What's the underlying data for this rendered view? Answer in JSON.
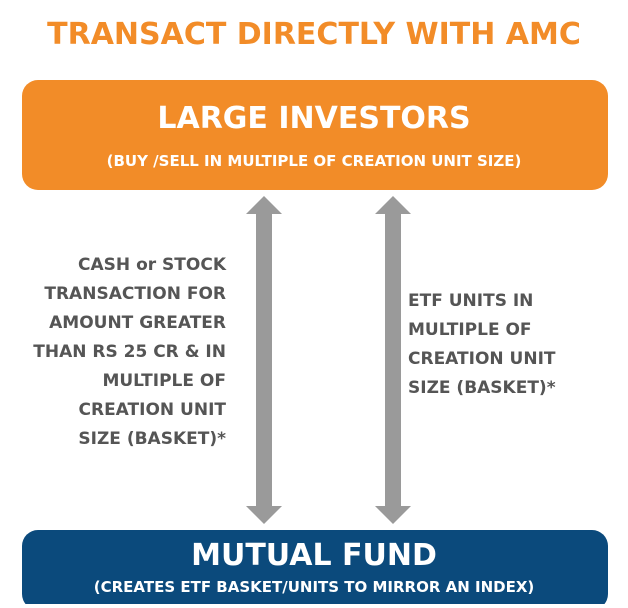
{
  "header": {
    "title": "TRANSACT DIRECTLY WITH AMC"
  },
  "top_box": {
    "title": "LARGE INVESTORS",
    "subtitle": "(BUY /SELL IN  MULTIPLE OF  CREATION UNIT SIZE)"
  },
  "left_label": [
    "CASH or  STOCK",
    "TRANSACTION FOR",
    "AMOUNT GREATER",
    "THAN RS 25 CR & IN",
    "MULTIPLE OF",
    "CREATION UNIT",
    "SIZE (BASKET)*"
  ],
  "right_label": [
    "ETF UNITS IN",
    "MULTIPLE OF",
    "CREATION  UNIT",
    "SIZE  (BASKET)*"
  ],
  "bottom_box": {
    "title": "MUTUAL FUND",
    "subtitle": "(CREATES ETF BASKET/UNITS  TO MIRROR AN INDEX)"
  }
}
